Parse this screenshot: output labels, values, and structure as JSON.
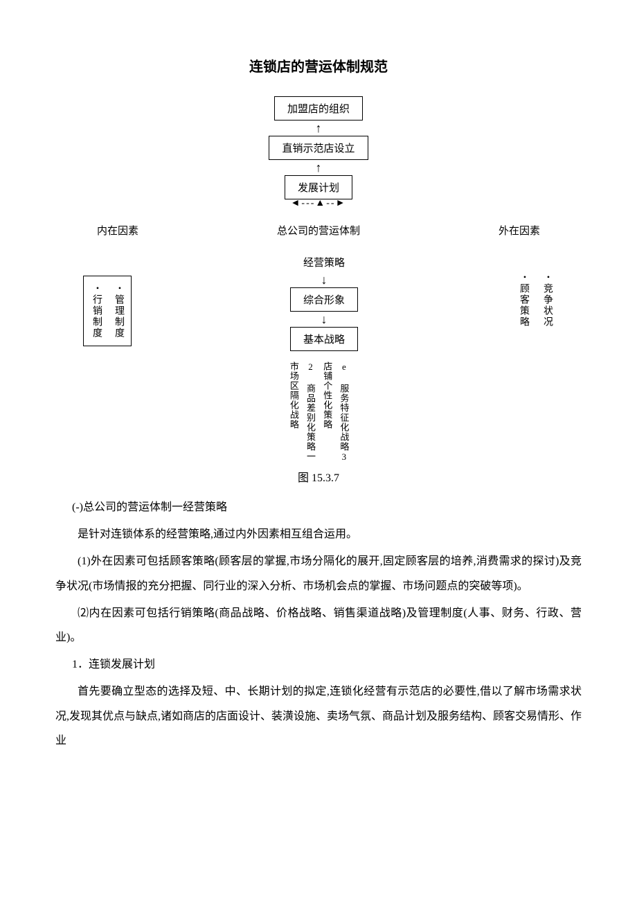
{
  "title": "连锁店的营运体制规范",
  "diagram": {
    "top_boxes": [
      "加盟店的组织",
      "直销示范店设立",
      "发展计划"
    ],
    "row_labels": {
      "left": "内在因素",
      "center": "总公司的营运体制",
      "right": "外在因素"
    },
    "left_box_items": [
      "行销制度",
      "管理制度"
    ],
    "center_top_label": "经营策略",
    "center_boxes": [
      "综合形象",
      "基本战略"
    ],
    "right_items": [
      "顾客策略",
      "竞争状况"
    ],
    "bottom_items": [
      "市场区隔化战略",
      "2 商品差别化策略一",
      "店铺个性化策略",
      "e 服务特征化战略3"
    ],
    "caption": "图 15.3.7"
  },
  "text": {
    "h1": "(-)总公司的营运体制一经营策略",
    "p1": "是针对连锁体系的经营策略,通过内外因素相互组合运用。",
    "p2": "(1)外在因素可包括顾客策略(顾客层的掌握,市场分隔化的展开,固定顾客层的培养,消费需求的探讨)及竞争状况(市场情报的充分把握、同行业的深入分析、市场机会点的掌握、市场问题点的突破等项)。",
    "p3": "⑵内在因素可包括行销策略(商品战略、价格战略、销售渠道战略)及管理制度(人事、财务、行政、营业)。",
    "h2": "1．连锁发展计划",
    "p4": "首先要确立型态的选择及短、中、长期计划的拟定,连锁化经营有示范店的必要性,借以了解市场需求状况,发现其优点与缺点,诸如商店的店面设计、装潢设施、卖场气氛、商品计划及服务结构、顾客交易情形、作业"
  },
  "colors": {
    "text": "#000000",
    "background": "#ffffff",
    "border": "#000000"
  }
}
